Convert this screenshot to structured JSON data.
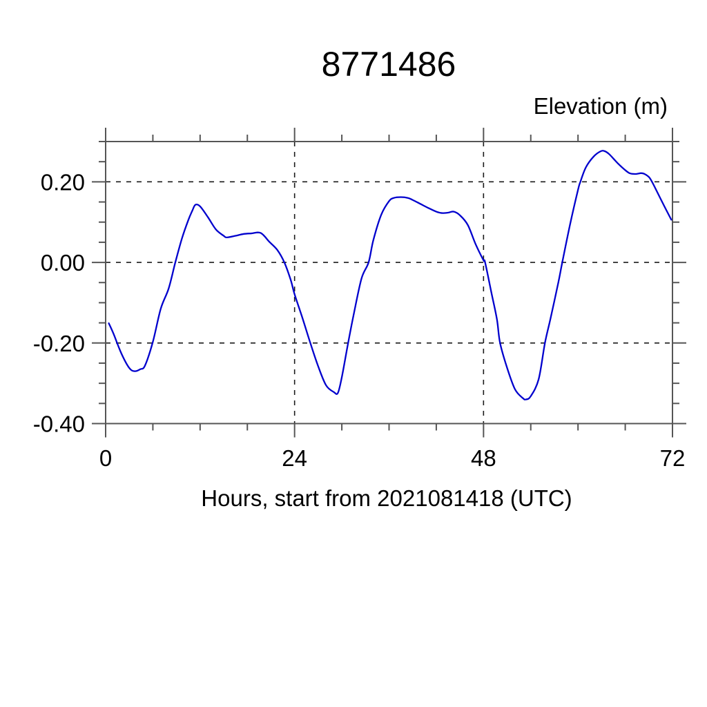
{
  "chart_data": {
    "type": "line",
    "title": "8771486",
    "ylabel": "Elevation (m)",
    "xlabel": "Hours, start from 2021081418 (UTC)",
    "xlim": [
      0,
      72
    ],
    "ylim": [
      -0.4,
      0.3
    ],
    "x_major_ticks": [
      0,
      24,
      48,
      72
    ],
    "x_tick_labels": [
      "0",
      "24",
      "48",
      "72"
    ],
    "x_minor_step": 6,
    "y_major_ticks": [
      0.2,
      0.0,
      -0.2,
      -0.4
    ],
    "y_tick_labels": [
      "0.20",
      "0.00",
      "-0.20",
      "-0.40"
    ],
    "y_minor_step": 0.05,
    "grid": "dashed-at-major-ticks",
    "legend": "none",
    "series": [
      {
        "name": "elevation",
        "x": [
          0.4,
          1,
          2,
          3,
          3.7,
          4.4,
          5,
          6,
          7,
          8,
          8.85,
          9.7,
          10.5,
          11,
          11.4,
          12,
          13,
          14,
          15,
          15.4,
          16.5,
          17.5,
          18.5,
          19.7,
          20.8,
          21.8,
          22.7,
          23.5,
          24,
          25,
          26,
          27,
          28,
          29,
          29.5,
          30,
          30.8,
          31.5,
          32.5,
          33.4,
          34,
          35,
          36,
          36.6,
          37.5,
          38.4,
          39,
          40,
          41,
          42,
          42.7,
          43.5,
          44.2,
          45,
          46,
          47,
          48,
          48.2,
          49,
          49.7,
          50.1,
          51,
          52,
          53,
          53.4,
          54,
          55,
          55.8,
          56.5,
          57.5,
          58,
          59,
          60,
          60.3,
          61,
          62,
          62.9,
          63.4,
          64,
          65,
          66,
          66.6,
          67.3,
          68,
          68.4,
          69,
          69.4,
          70,
          71,
          71.85
        ],
        "y": [
          -0.151,
          -0.177,
          -0.226,
          -0.262,
          -0.27,
          -0.265,
          -0.256,
          -0.197,
          -0.115,
          -0.065,
          0.0,
          0.06,
          0.105,
          0.128,
          0.143,
          0.139,
          0.112,
          0.082,
          0.066,
          0.062,
          0.066,
          0.0705,
          0.072,
          0.073,
          0.051,
          0.031,
          0.0,
          -0.043,
          -0.079,
          -0.138,
          -0.2,
          -0.258,
          -0.305,
          -0.322,
          -0.324,
          -0.285,
          -0.2,
          -0.13,
          -0.04,
          0.0,
          0.055,
          0.118,
          0.152,
          0.16,
          0.162,
          0.16,
          0.155,
          0.145,
          0.135,
          0.126,
          0.1225,
          0.1235,
          0.126,
          0.117,
          0.093,
          0.045,
          0.005,
          0.0,
          -0.075,
          -0.141,
          -0.2,
          -0.262,
          -0.315,
          -0.337,
          -0.34,
          -0.332,
          -0.29,
          -0.2,
          -0.14,
          -0.05,
          0.0,
          0.095,
          0.18,
          0.2,
          0.236,
          0.263,
          0.276,
          0.276,
          0.268,
          0.247,
          0.229,
          0.221,
          0.2195,
          0.2215,
          0.22,
          0.212,
          0.2,
          0.177,
          0.138,
          0.106
        ]
      }
    ]
  },
  "colors": {
    "line": "#0000cd",
    "frame": "#555555",
    "grid": "#1a1a1a",
    "text": "#000000",
    "background": "#ffffff"
  }
}
